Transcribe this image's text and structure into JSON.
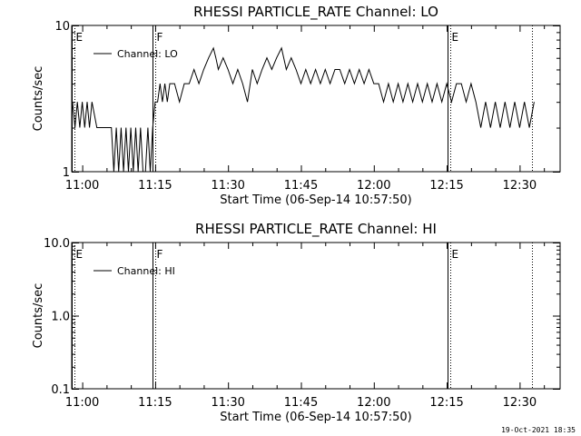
{
  "footer": "19-Oct-2021 18:35",
  "chart_data": [
    {
      "type": "line",
      "title": "RHESSI PARTICLE_RATE Channel: LO",
      "xlabel": "Start Time (06-Sep-14 10:57:50)",
      "ylabel": "Counts/sec",
      "yscale": "log",
      "ylim": [
        1,
        10
      ],
      "xlim": [
        "10:57:50",
        "12:38:20"
      ],
      "x_ticks": [
        "11:00",
        "11:15",
        "11:30",
        "11:45",
        "12:00",
        "12:15",
        "12:30"
      ],
      "y_ticks": [
        "1",
        "10"
      ],
      "grid": false,
      "legend": {
        "position": "top-left",
        "entries": [
          "Channel: LO"
        ]
      },
      "series": [
        {
          "name": "Channel: LO",
          "color": "#000000",
          "x": [
            "10:58:00",
            "10:58:30",
            "10:59:00",
            "10:59:30",
            "11:00:00",
            "11:00:30",
            "11:01:00",
            "11:01:30",
            "11:02:00",
            "11:03:00",
            "11:04:00",
            "11:05:00",
            "11:06:00",
            "11:06:30",
            "11:07:00",
            "11:07:30",
            "11:08:00",
            "11:08:30",
            "11:09:00",
            "11:09:30",
            "11:10:00",
            "11:10:30",
            "11:11:00",
            "11:11:30",
            "11:12:00",
            "11:12:30",
            "11:13:00",
            "11:13:30",
            "11:14:00",
            "11:14:30",
            "11:15:00",
            "11:15:30",
            "11:16:00",
            "11:16:30",
            "11:17:00",
            "11:17:30",
            "11:18:00",
            "11:19:00",
            "11:20:00",
            "11:21:00",
            "11:22:00",
            "11:23:00",
            "11:24:00",
            "11:25:00",
            "11:26:00",
            "11:27:00",
            "11:27:30",
            "11:28:00",
            "11:29:00",
            "11:30:00",
            "11:31:00",
            "11:32:00",
            "11:33:00",
            "11:34:00",
            "11:35:00",
            "11:36:00",
            "11:37:00",
            "11:38:00",
            "11:39:00",
            "11:40:00",
            "11:41:00",
            "11:42:00",
            "11:43:00",
            "11:44:00",
            "11:45:00",
            "11:46:00",
            "11:47:00",
            "11:48:00",
            "11:49:00",
            "11:50:00",
            "11:51:00",
            "11:52:00",
            "11:53:00",
            "11:54:00",
            "11:55:00",
            "11:56:00",
            "11:57:00",
            "11:58:00",
            "11:59:00",
            "12:00:00",
            "12:01:00",
            "12:02:00",
            "12:03:00",
            "12:04:00",
            "12:05:00",
            "12:06:00",
            "12:07:00",
            "12:08:00",
            "12:09:00",
            "12:10:00",
            "12:11:00",
            "12:12:00",
            "12:13:00",
            "12:14:00",
            "12:15:00",
            "12:16:00",
            "12:17:00",
            "12:18:00",
            "12:19:00",
            "12:20:00",
            "12:21:00",
            "12:22:00",
            "12:23:00",
            "12:24:00",
            "12:25:00",
            "12:26:00",
            "12:27:00",
            "12:28:00",
            "12:29:00",
            "12:30:00",
            "12:31:00",
            "12:32:00",
            "12:33:00"
          ],
          "y": [
            3,
            2,
            3,
            2,
            3,
            2,
            3,
            2,
            3,
            2,
            2,
            2,
            2,
            1,
            2,
            1,
            2,
            1,
            2,
            1,
            2,
            1,
            2,
            1,
            2,
            1,
            1,
            2,
            1,
            2,
            3,
            3,
            4,
            3,
            4,
            3,
            4,
            4,
            3,
            4,
            4,
            5,
            4,
            5,
            6,
            7,
            6,
            5,
            6,
            5,
            4,
            5,
            4,
            3,
            5,
            4,
            5,
            6,
            5,
            6,
            7,
            5,
            6,
            5,
            4,
            5,
            4,
            5,
            4,
            5,
            4,
            5,
            5,
            4,
            5,
            4,
            5,
            4,
            5,
            4,
            4,
            3,
            4,
            3,
            4,
            3,
            4,
            3,
            4,
            3,
            4,
            3,
            4,
            3,
            4,
            3,
            4,
            4,
            3,
            4,
            3,
            2,
            3,
            2,
            3,
            2,
            3,
            2,
            3,
            2,
            3,
            2,
            3
          ]
        }
      ],
      "vertical_markers": [
        {
          "label": "E",
          "time": "10:57:50"
        },
        {
          "label": "F",
          "time": "11:14:30"
        },
        {
          "label": "E",
          "time": "12:15:10"
        },
        {
          "label": "",
          "time": "12:32:30"
        }
      ]
    },
    {
      "type": "line",
      "title": "RHESSI PARTICLE_RATE Channel: HI",
      "xlabel": "Start Time (06-Sep-14 10:57:50)",
      "ylabel": "Counts/sec",
      "yscale": "log",
      "ylim": [
        0.1,
        10
      ],
      "xlim": [
        "10:57:50",
        "12:38:20"
      ],
      "x_ticks": [
        "11:00",
        "11:15",
        "11:30",
        "11:45",
        "12:00",
        "12:15",
        "12:30"
      ],
      "y_ticks": [
        "0.1",
        "1.0",
        "10.0"
      ],
      "grid": false,
      "legend": {
        "position": "top-left",
        "entries": [
          "Channel: HI"
        ]
      },
      "series": [
        {
          "name": "Channel: HI",
          "color": "#000000",
          "x": [],
          "y": []
        }
      ],
      "vertical_markers": [
        {
          "label": "E",
          "time": "10:57:50"
        },
        {
          "label": "F",
          "time": "11:14:30"
        },
        {
          "label": "E",
          "time": "12:15:10"
        },
        {
          "label": "",
          "time": "12:32:30"
        }
      ]
    }
  ]
}
